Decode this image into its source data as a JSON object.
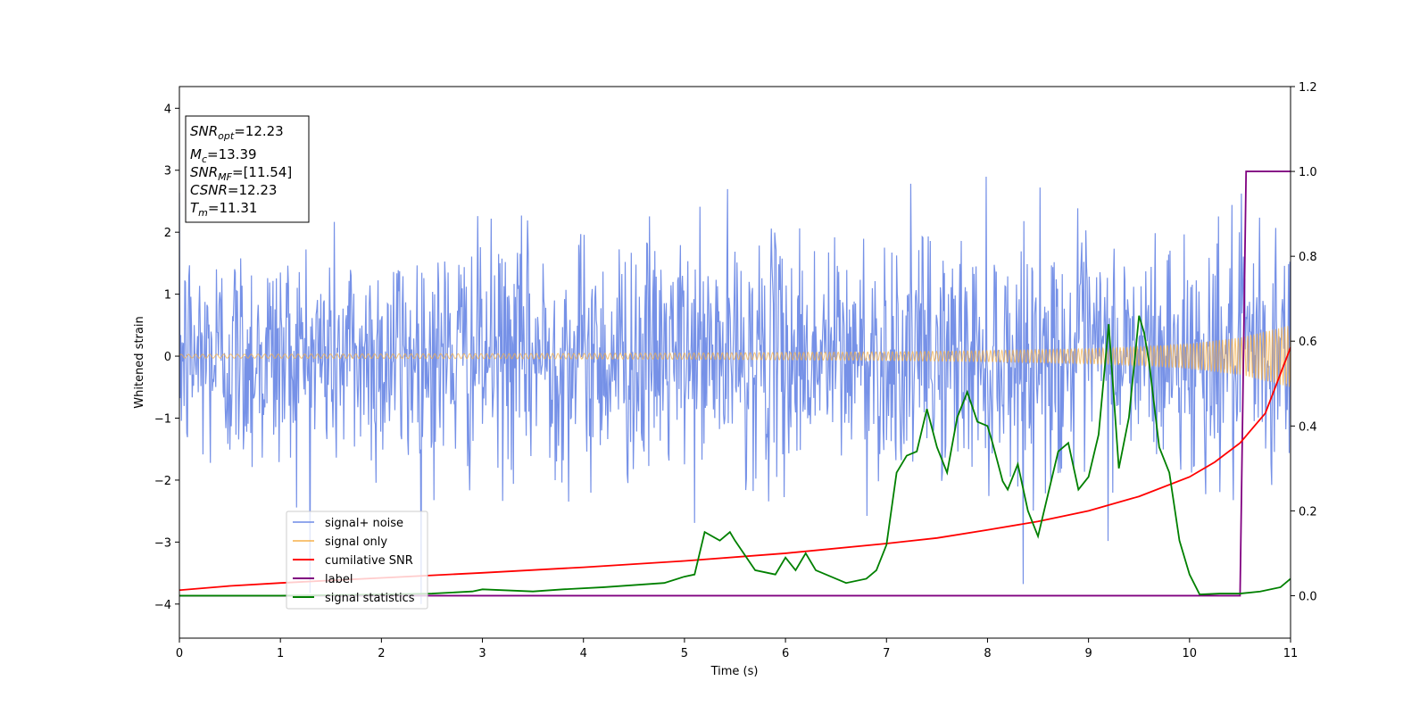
{
  "chart_data": {
    "type": "line",
    "xlabel": "Time (s)",
    "ylabel": "Whitened strain",
    "xlim": [
      0,
      11
    ],
    "ylim": [
      -4.55,
      4.35
    ],
    "y2lim": [
      -0.1,
      1.2
    ],
    "xticks": [
      "0",
      "1",
      "2",
      "3",
      "4",
      "5",
      "6",
      "7",
      "8",
      "9",
      "10",
      "11"
    ],
    "yticks": [
      "4",
      "3",
      "2",
      "1",
      "0",
      "−1",
      "−2",
      "−3",
      "−4"
    ],
    "y2ticks": [
      "1.2",
      "1.0",
      "0.8",
      "0.6",
      "0.4",
      "0.2",
      "0.0"
    ],
    "grid": false,
    "legend_position": "lower-left",
    "info_box": {
      "snr_opt": "=12.23",
      "mc": "=13.39",
      "snr_mf": "=[11.54]",
      "csnr": "=12.23",
      "tm": "=11.31"
    },
    "series": [
      {
        "name": "signal+ noise",
        "color": "#6f8be6",
        "axis": "left",
        "kind": "noise",
        "sigma": 0.95,
        "sample_rate_hz": 150
      },
      {
        "name": "signal only",
        "color": "#f5b04a",
        "axis": "left",
        "kind": "chirp",
        "envelope_x": [
          0,
          3,
          5,
          7,
          8,
          9,
          9.5,
          10,
          10.5,
          11
        ],
        "envelope_y": [
          0.03,
          0.04,
          0.05,
          0.07,
          0.09,
          0.12,
          0.15,
          0.2,
          0.3,
          0.5
        ]
      },
      {
        "name": "cumilative SNR",
        "color": "#ff0000",
        "axis": "right",
        "x": [
          0,
          0.5,
          1,
          2,
          3,
          4,
          5,
          6,
          7,
          7.5,
          8,
          8.5,
          9,
          9.5,
          10,
          10.25,
          10.5,
          10.75,
          11
        ],
        "y": [
          0.013,
          0.023,
          0.03,
          0.042,
          0.054,
          0.067,
          0.082,
          0.1,
          0.123,
          0.136,
          0.155,
          0.175,
          0.2,
          0.234,
          0.28,
          0.315,
          0.36,
          0.43,
          0.585
        ]
      },
      {
        "name": "label",
        "color": "#800080",
        "axis": "right",
        "x": [
          0,
          10.5,
          10.56,
          11
        ],
        "y": [
          0,
          0,
          1,
          1
        ]
      },
      {
        "name": "signal statistics",
        "color": "#008000",
        "axis": "right",
        "x": [
          0,
          1,
          2,
          2.5,
          2.9,
          3,
          3.5,
          3.8,
          4.2,
          4.5,
          4.8,
          5,
          5.1,
          5.2,
          5.35,
          5.45,
          5.5,
          5.7,
          5.9,
          6,
          6.1,
          6.2,
          6.3,
          6.4,
          6.5,
          6.6,
          6.8,
          6.9,
          7,
          7.1,
          7.2,
          7.3,
          7.4,
          7.5,
          7.6,
          7.7,
          7.8,
          7.9,
          8,
          8.05,
          8.15,
          8.2,
          8.3,
          8.4,
          8.5,
          8.6,
          8.7,
          8.8,
          8.9,
          9,
          9.1,
          9.2,
          9.3,
          9.4,
          9.5,
          9.55,
          9.6,
          9.7,
          9.8,
          9.9,
          10,
          10.1,
          10.3,
          10.5,
          10.7,
          10.9,
          11
        ],
        "y": [
          0,
          0,
          0.003,
          0.005,
          0.01,
          0.015,
          0.01,
          0.015,
          0.02,
          0.025,
          0.03,
          0.045,
          0.05,
          0.15,
          0.13,
          0.15,
          0.13,
          0.06,
          0.05,
          0.09,
          0.06,
          0.1,
          0.06,
          0.05,
          0.04,
          0.03,
          0.04,
          0.06,
          0.12,
          0.29,
          0.33,
          0.34,
          0.44,
          0.35,
          0.29,
          0.42,
          0.48,
          0.41,
          0.4,
          0.36,
          0.27,
          0.25,
          0.31,
          0.2,
          0.14,
          0.24,
          0.34,
          0.36,
          0.25,
          0.28,
          0.38,
          0.64,
          0.3,
          0.42,
          0.66,
          0.62,
          0.55,
          0.35,
          0.29,
          0.13,
          0.05,
          0.003,
          0.005,
          0.005,
          0.01,
          0.02,
          0.04
        ]
      }
    ]
  }
}
